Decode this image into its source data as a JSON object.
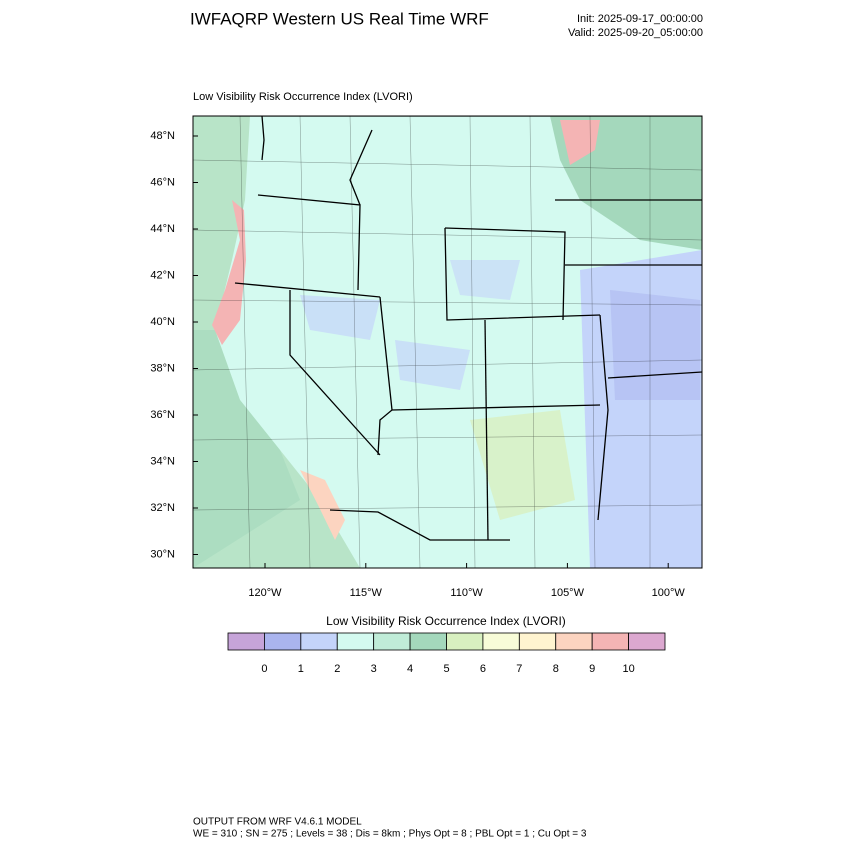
{
  "header": {
    "title": "IWFAQRP Western US Real Time WRF",
    "init": "Init: 2025-09-17_00:00:00",
    "valid": "Valid: 2025-09-20_05:00:00"
  },
  "map": {
    "title": "Low Visibility Risk Occurrence Index   (LVORI)",
    "lat_labels": [
      "48°N",
      "46°N",
      "44°N",
      "42°N",
      "40°N",
      "38°N",
      "36°N",
      "34°N",
      "32°N",
      "30°N"
    ],
    "lon_labels": [
      "120°W",
      "115°W",
      "110°W",
      "105°W",
      "100°W"
    ]
  },
  "colorbar": {
    "title": "Low Visibility Risk Occurrence Index  (LVORI)",
    "colors": [
      "#c6a4d9",
      "#aab4ee",
      "#c4d4fa",
      "#d4faf0",
      "#c0ecd8",
      "#a4d8bc",
      "#d8f0c0",
      "#f8fcd8",
      "#fff4d0",
      "#fcd4c0",
      "#f4b4b4",
      "#dca8d0"
    ],
    "labels": [
      0,
      1,
      2,
      3,
      4,
      5,
      6,
      7,
      8,
      9,
      10
    ]
  },
  "footer": {
    "line1": "OUTPUT FROM WRF V4.6.1 MODEL",
    "line2": "WE = 310 ; SN = 275 ; Levels = 38 ; Dis = 8km ; Phys Opt = 8 ; PBL Opt = 1 ; Cu Opt = 3"
  }
}
